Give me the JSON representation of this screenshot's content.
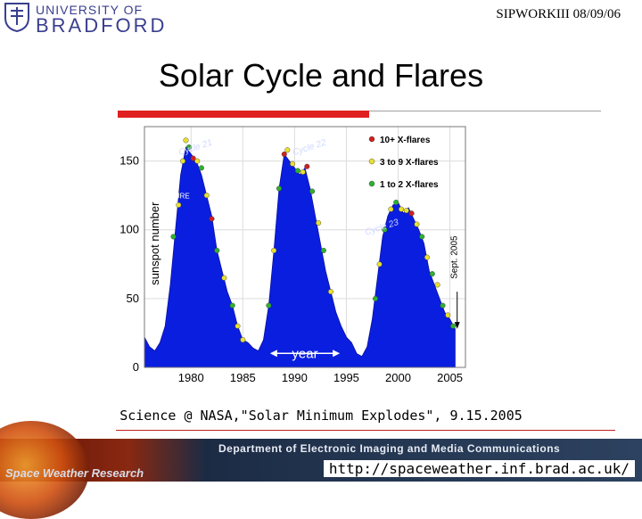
{
  "header": {
    "logo_line1": "UNIVERSITY OF",
    "logo_line2": "BRADFORD",
    "conference": "SIPWORKIII 08/09/06"
  },
  "slide": {
    "title": "Solar Cycle and Flares",
    "caption": "Science @ NASA,\"Solar Minimum Explodes\", 9.15.2005"
  },
  "footer": {
    "department": "Department of Electronic Imaging and Media Communications",
    "group": "Space Weather Research",
    "url": "http://spaceweather.inf.brad.ac.uk/"
  },
  "chart_data": {
    "type": "area",
    "ylabel": "sunspot number",
    "xlabel": "year",
    "xlim": [
      1975.5,
      2006.5
    ],
    "ylim": [
      0,
      175
    ],
    "x_ticks": [
      1980,
      1985,
      1990,
      1995,
      2000,
      2005
    ],
    "y_ticks": [
      0,
      50,
      100,
      150
    ],
    "fill_color": "#0a1ee0",
    "grid": true,
    "legend_placement": "top-right",
    "legend": [
      {
        "label": "10+ X-flares",
        "color": "#d02020"
      },
      {
        "label": "3 to 9 X-flares",
        "color": "#e8e030"
      },
      {
        "label": "1 to 2 X-flares",
        "color": "#30b030"
      }
    ],
    "cycle_labels": [
      {
        "text": "Cycle 21",
        "x": 1980.5,
        "y": 158
      },
      {
        "text": "Cycle 22",
        "x": 1991.5,
        "y": 158
      },
      {
        "text": "Cycle 23",
        "x": 1998.5,
        "y": 100
      }
    ],
    "annotations": {
      "feature": "FEATURE",
      "sept": "Sept. 2005",
      "feature_y": 128,
      "sept_x": 2005.7
    },
    "series": [
      {
        "x": [
          1975.5,
          1976,
          1976.5,
          1977,
          1977.5,
          1978,
          1978.5,
          1979,
          1979.5,
          1980,
          1980.5,
          1981,
          1981.5,
          1982,
          1982.5,
          1983,
          1983.5,
          1984,
          1984.5,
          1985,
          1985.5,
          1986,
          1986.5,
          1987,
          1987.5,
          1988,
          1988.5,
          1989,
          1989.5,
          1990,
          1990.5,
          1991,
          1991.5,
          1992,
          1992.5,
          1993,
          1993.5,
          1994,
          1994.5,
          1995,
          1995.5,
          1996,
          1996.5,
          1997,
          1997.5,
          1998,
          1998.5,
          1999,
          1999.5,
          2000,
          2000.5,
          2001,
          2001.5,
          2002,
          2002.5,
          2003,
          2003.5,
          2004,
          2004.5,
          2005,
          2005.5
        ],
        "values": [
          22,
          15,
          12,
          18,
          30,
          60,
          100,
          140,
          160,
          155,
          150,
          140,
          125,
          110,
          85,
          70,
          55,
          45,
          30,
          20,
          18,
          14,
          12,
          20,
          45,
          85,
          130,
          155,
          150,
          145,
          140,
          145,
          130,
          110,
          90,
          70,
          55,
          40,
          30,
          22,
          18,
          10,
          8,
          15,
          35,
          65,
          95,
          110,
          118,
          120,
          112,
          116,
          108,
          100,
          90,
          70,
          60,
          50,
          40,
          35,
          28
        ]
      }
    ],
    "flares": [
      {
        "x": 1978.3,
        "y": 95,
        "c": 2
      },
      {
        "x": 1978.8,
        "y": 118,
        "c": 1
      },
      {
        "x": 1979.2,
        "y": 150,
        "c": 1
      },
      {
        "x": 1979.5,
        "y": 165,
        "c": 1
      },
      {
        "x": 1979.8,
        "y": 160,
        "c": 2
      },
      {
        "x": 1980.2,
        "y": 152,
        "c": 0
      },
      {
        "x": 1980.6,
        "y": 150,
        "c": 1
      },
      {
        "x": 1981.0,
        "y": 145,
        "c": 2
      },
      {
        "x": 1981.5,
        "y": 125,
        "c": 1
      },
      {
        "x": 1982.0,
        "y": 108,
        "c": 0
      },
      {
        "x": 1982.5,
        "y": 85,
        "c": 2
      },
      {
        "x": 1983.2,
        "y": 65,
        "c": 1
      },
      {
        "x": 1984.0,
        "y": 45,
        "c": 2
      },
      {
        "x": 1984.5,
        "y": 30,
        "c": 1
      },
      {
        "x": 1985.0,
        "y": 20,
        "c": 1
      },
      {
        "x": 1987.5,
        "y": 45,
        "c": 2
      },
      {
        "x": 1988.0,
        "y": 85,
        "c": 1
      },
      {
        "x": 1988.5,
        "y": 130,
        "c": 2
      },
      {
        "x": 1989.0,
        "y": 155,
        "c": 0
      },
      {
        "x": 1989.3,
        "y": 158,
        "c": 1
      },
      {
        "x": 1989.8,
        "y": 148,
        "c": 1
      },
      {
        "x": 1990.3,
        "y": 143,
        "c": 2
      },
      {
        "x": 1990.8,
        "y": 142,
        "c": 1
      },
      {
        "x": 1991.2,
        "y": 146,
        "c": 0
      },
      {
        "x": 1991.7,
        "y": 128,
        "c": 2
      },
      {
        "x": 1992.3,
        "y": 105,
        "c": 1
      },
      {
        "x": 1992.8,
        "y": 85,
        "c": 2
      },
      {
        "x": 1993.5,
        "y": 55,
        "c": 1
      },
      {
        "x": 1997.8,
        "y": 50,
        "c": 2
      },
      {
        "x": 1998.2,
        "y": 75,
        "c": 1
      },
      {
        "x": 1998.7,
        "y": 100,
        "c": 2
      },
      {
        "x": 1999.3,
        "y": 115,
        "c": 1
      },
      {
        "x": 1999.8,
        "y": 120,
        "c": 2
      },
      {
        "x": 2000.3,
        "y": 115,
        "c": 1
      },
      {
        "x": 2000.8,
        "y": 114,
        "c": 1
      },
      {
        "x": 2001.3,
        "y": 112,
        "c": 0
      },
      {
        "x": 2001.8,
        "y": 104,
        "c": 1
      },
      {
        "x": 2002.3,
        "y": 95,
        "c": 2
      },
      {
        "x": 2002.8,
        "y": 80,
        "c": 1
      },
      {
        "x": 2003.3,
        "y": 68,
        "c": 2
      },
      {
        "x": 2003.8,
        "y": 60,
        "c": 1
      },
      {
        "x": 2004.3,
        "y": 45,
        "c": 2
      },
      {
        "x": 2004.8,
        "y": 38,
        "c": 1
      },
      {
        "x": 2005.3,
        "y": 30,
        "c": 2
      }
    ]
  }
}
